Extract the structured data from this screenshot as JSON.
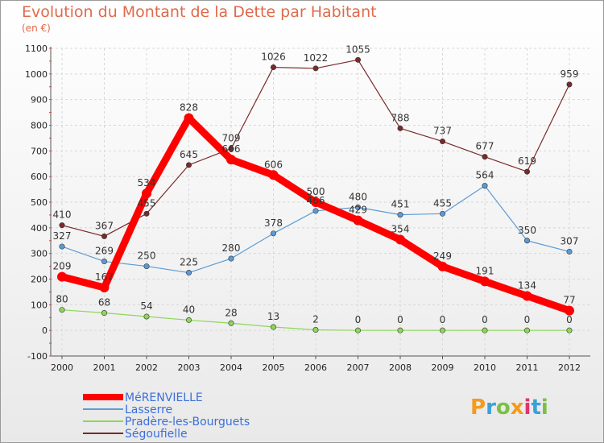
{
  "header": {
    "title": "Evolution du Montant de la Dette par Habitant",
    "unit": "(en €)"
  },
  "logo": {
    "text": "Proxiti"
  },
  "chart_data": {
    "type": "line",
    "title": "Evolution du Montant de la Dette par Habitant",
    "ylabel": "(en €)",
    "xlabel": "",
    "x": [
      "2000",
      "2001",
      "2002",
      "2003",
      "2004",
      "2005",
      "2006",
      "2007",
      "2008",
      "2009",
      "2010",
      "2011",
      "2012"
    ],
    "ylim": [
      -100,
      1100
    ],
    "yticks": [
      -100,
      0,
      100,
      200,
      300,
      400,
      500,
      600,
      700,
      800,
      900,
      1000,
      1100
    ],
    "grid": true,
    "legend_position": "bottom-left",
    "series": [
      {
        "name": "MéRENVIELLE",
        "color": "#ff0000",
        "values": [
          209,
          167,
          534,
          828,
          666,
          606,
          500,
          429,
          354,
          249,
          191,
          134,
          77
        ]
      },
      {
        "name": "Lasserre",
        "color": "#5b9bd5",
        "values": [
          327,
          269,
          250,
          225,
          280,
          378,
          466,
          480,
          451,
          455,
          564,
          350,
          307
        ]
      },
      {
        "name": "Pradère-les-Bourguets",
        "color": "#8fd65a",
        "values": [
          80,
          68,
          54,
          40,
          28,
          13,
          2,
          0,
          0,
          0,
          0,
          0,
          0
        ]
      },
      {
        "name": "Ségoufielle",
        "color": "#7a2a2a",
        "values": [
          410,
          367,
          455,
          645,
          709,
          1026,
          1022,
          1055,
          788,
          737,
          677,
          619,
          959
        ]
      }
    ]
  }
}
